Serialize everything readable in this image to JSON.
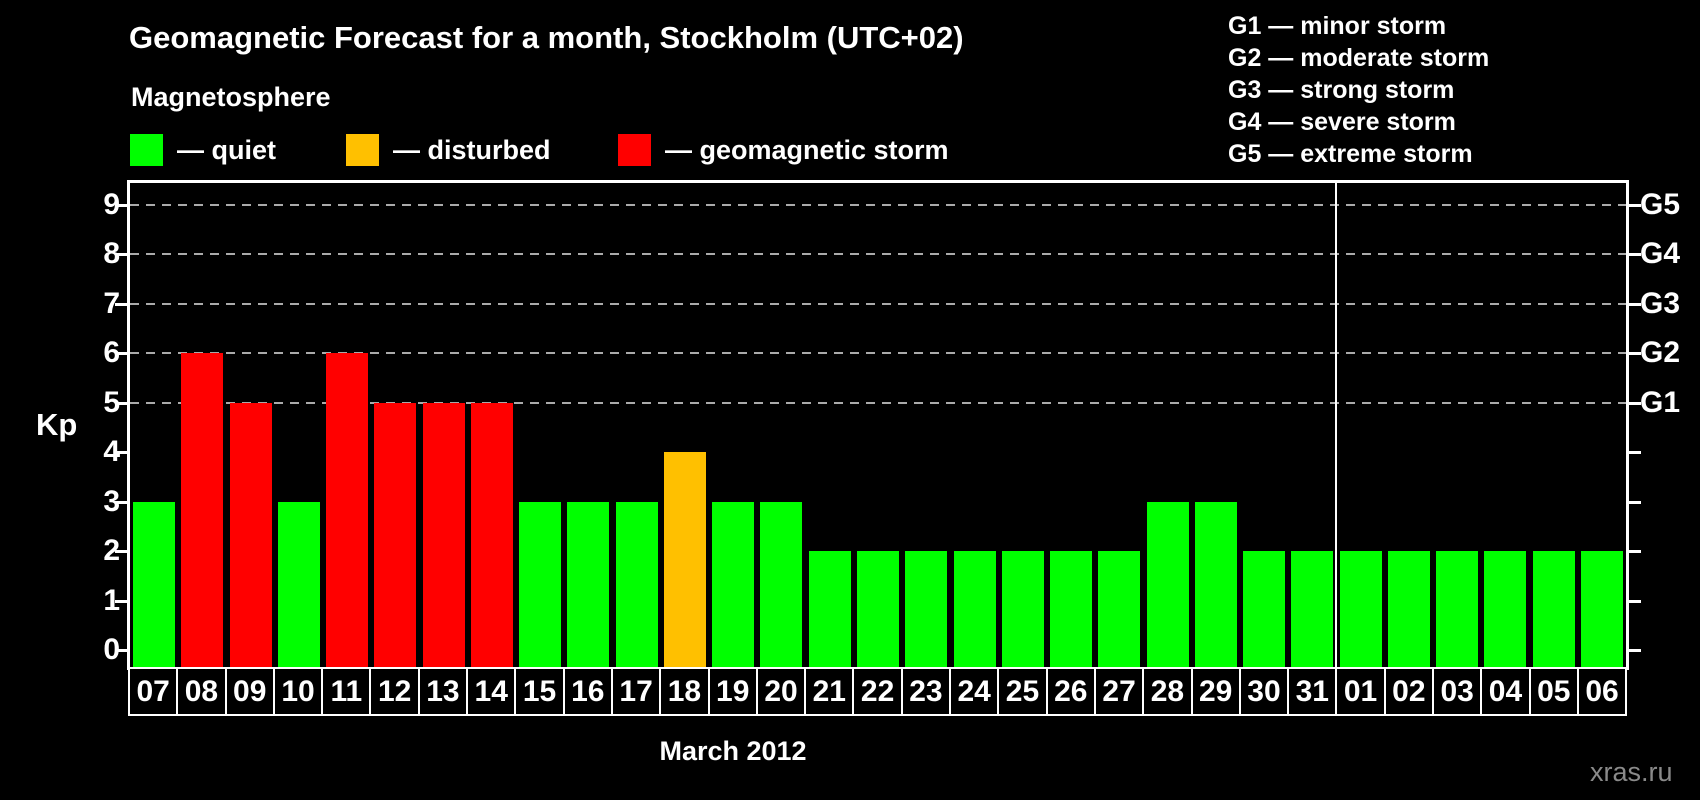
{
  "title": "Geomagnetic Forecast for a month, Stockholm (UTC+02)",
  "legend": {
    "heading": "Magnetosphere",
    "items": [
      {
        "name": "quiet",
        "label": "— quiet",
        "color": "#00ff00"
      },
      {
        "name": "disturbed",
        "label": "— disturbed",
        "color": "#ffc000"
      },
      {
        "name": "storm",
        "label": "— geomagnetic storm",
        "color": "#ff0000"
      }
    ]
  },
  "storm_scale_legend": [
    "G1 — minor storm",
    "G2 — moderate storm",
    "G3 — strong storm",
    "G4 — severe storm",
    "G5 — extreme storm"
  ],
  "axes": {
    "y_label": "Kp",
    "kp_ticks": [
      0,
      1,
      2,
      3,
      4,
      5,
      6,
      7,
      8,
      9
    ],
    "g_ticks": [
      {
        "label": "G1",
        "kp": 5
      },
      {
        "label": "G2",
        "kp": 6
      },
      {
        "label": "G3",
        "kp": 7
      },
      {
        "label": "G4",
        "kp": 8
      },
      {
        "label": "G5",
        "kp": 9
      }
    ],
    "x_label": "March 2012"
  },
  "watermark": "xras.ru",
  "colors": {
    "quiet": "#00ff00",
    "disturbed": "#ffc000",
    "storm": "#ff0000",
    "background": "#000000",
    "axis": "#ffffff",
    "gridline": "#aaaaaa",
    "watermark": "#8a8a8a"
  },
  "chart_data": {
    "type": "bar",
    "title": "Geomagnetic Forecast for a month, Stockholm (UTC+02)",
    "ylabel": "Kp",
    "xlabel": "March 2012",
    "ylim": [
      0,
      9.4
    ],
    "grid": "dashed horizontal at Kp 5-9 only",
    "gridlines_at_kp": [
      5,
      6,
      7,
      8,
      9
    ],
    "legend_position": "top",
    "categories": [
      "07",
      "08",
      "09",
      "10",
      "11",
      "12",
      "13",
      "14",
      "15",
      "16",
      "17",
      "18",
      "19",
      "20",
      "21",
      "22",
      "23",
      "24",
      "25",
      "26",
      "27",
      "28",
      "29",
      "30",
      "31",
      "01",
      "02",
      "03",
      "04",
      "05",
      "06"
    ],
    "values": [
      3,
      6,
      5,
      3,
      6,
      5,
      5,
      5,
      3,
      3,
      3,
      4,
      3,
      3,
      2,
      2,
      2,
      2,
      2,
      2,
      2,
      3,
      3,
      2,
      2,
      2,
      2,
      2,
      2,
      2,
      2
    ],
    "statuses": [
      "quiet",
      "storm",
      "storm",
      "quiet",
      "storm",
      "storm",
      "storm",
      "storm",
      "quiet",
      "quiet",
      "quiet",
      "disturbed",
      "quiet",
      "quiet",
      "quiet",
      "quiet",
      "quiet",
      "quiet",
      "quiet",
      "quiet",
      "quiet",
      "quiet",
      "quiet",
      "quiet",
      "quiet",
      "quiet",
      "quiet",
      "quiet",
      "quiet",
      "quiet",
      "quiet"
    ],
    "month_separator_after_category": "31"
  }
}
